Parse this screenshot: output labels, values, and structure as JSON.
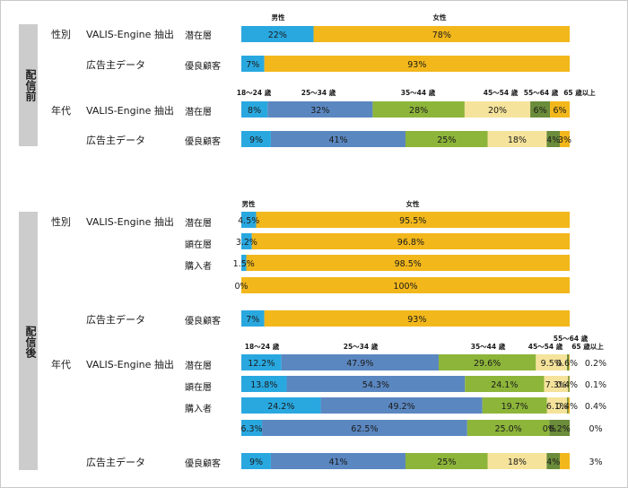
{
  "sections": {
    "before": "配信前",
    "after": "配信後"
  },
  "groups": {
    "gender": "性別",
    "age": "年代"
  },
  "sources": {
    "valis": "VALIS-Engine 抽出",
    "advertiser": "広告主データ"
  },
  "segments": {
    "potential": "潜在層",
    "apparent": "顕在層",
    "buyer": "購入者",
    "good_customer": "優良顧客"
  },
  "colors": {
    "male": "#29a8e0",
    "female": "#f2b71b",
    "age_18_24": "#29a8e0",
    "age_25_34": "#5b87c0",
    "age_35_44": "#8db53a",
    "age_45_54": "#f5e39b",
    "age_55_64": "#6b8c3a",
    "age_65_plus": "#f2b71b"
  },
  "chart_data": [
    {
      "type": "bar",
      "title": "配信前 性別",
      "series_names": [
        "男性",
        "女性"
      ],
      "rows": [
        {
          "source": "VALIS-Engine 抽出",
          "segment": "潜在層",
          "values": [
            22,
            78
          ],
          "labels": [
            "22%",
            "78%"
          ]
        },
        {
          "source": "広告主データ",
          "segment": "優良顧客",
          "values": [
            7,
            93
          ],
          "labels": [
            "7%",
            "93%"
          ]
        }
      ]
    },
    {
      "type": "bar",
      "title": "配信前 年代",
      "series_names": [
        "18～24 歳",
        "25～34 歳",
        "35～44 歳",
        "45～54 歳",
        "55～64 歳",
        "65 歳以上"
      ],
      "rows": [
        {
          "source": "VALIS-Engine 抽出",
          "segment": "潜在層",
          "values": [
            8,
            32,
            28,
            20,
            6,
            6
          ],
          "labels": [
            "8%",
            "32%",
            "28%",
            "20%",
            "6%",
            "6%"
          ]
        },
        {
          "source": "広告主データ",
          "segment": "優良顧客",
          "values": [
            9,
            41,
            25,
            18,
            4,
            3
          ],
          "labels": [
            "9%",
            "41%",
            "25%",
            "18%",
            "4%",
            "3%"
          ]
        }
      ]
    },
    {
      "type": "bar",
      "title": "配信後 性別",
      "series_names": [
        "男性",
        "女性"
      ],
      "rows": [
        {
          "source": "VALIS-Engine 抽出",
          "segment": "潜在層",
          "values": [
            4.5,
            95.5
          ],
          "labels": [
            "4.5%",
            "95.5%"
          ]
        },
        {
          "source": "",
          "segment": "顕在層",
          "values": [
            3.2,
            96.8
          ],
          "labels": [
            "3.2%",
            "96.8%"
          ]
        },
        {
          "source": "",
          "segment": "購入者",
          "values": [
            1.5,
            98.5
          ],
          "labels": [
            "1.5%",
            "98.5%"
          ]
        },
        {
          "source": "",
          "segment": "",
          "values": [
            0,
            100
          ],
          "labels": [
            "0%",
            "100%"
          ]
        },
        {
          "source": "広告主データ",
          "segment": "優良顧客",
          "values": [
            7,
            93
          ],
          "labels": [
            "7%",
            "93%"
          ]
        }
      ]
    },
    {
      "type": "bar",
      "title": "配信後 年代",
      "series_names": [
        "18～24 歳",
        "25～34 歳",
        "35～44 歳",
        "45～54 歳",
        "55～64 歳",
        "65 歳以上"
      ],
      "rows": [
        {
          "source": "VALIS-Engine 抽出",
          "segment": "潜在層",
          "values": [
            12.2,
            47.9,
            29.6,
            9.5,
            0.6,
            0.2
          ],
          "labels": [
            "12.2%",
            "47.9%",
            "29.6%",
            "9.5%",
            "0.6%",
            "0.2%"
          ]
        },
        {
          "source": "",
          "segment": "顕在層",
          "values": [
            13.8,
            54.3,
            24.1,
            7.3,
            0.4,
            0.1
          ],
          "labels": [
            "13.8%",
            "54.3%",
            "24.1%",
            "7.3%",
            "0.4%",
            "0.1%"
          ]
        },
        {
          "source": "",
          "segment": "購入者",
          "values": [
            24.2,
            49.2,
            19.7,
            6.1,
            0.4,
            0.4
          ],
          "labels": [
            "24.2%",
            "49.2%",
            "19.7%",
            "6.1%",
            "0.4%",
            "0.4%"
          ]
        },
        {
          "source": "",
          "segment": "",
          "values": [
            6.3,
            62.5,
            25.0,
            0,
            6.2,
            0
          ],
          "labels": [
            "6.3%",
            "62.5%",
            "25.0%",
            "0%",
            "6.2%",
            "0%"
          ]
        },
        {
          "source": "広告主データ",
          "segment": "優良顧客",
          "values": [
            9,
            41,
            25,
            18,
            4,
            3
          ],
          "labels": [
            "9%",
            "41%",
            "25%",
            "18%",
            "4%",
            "3%"
          ]
        }
      ]
    }
  ]
}
